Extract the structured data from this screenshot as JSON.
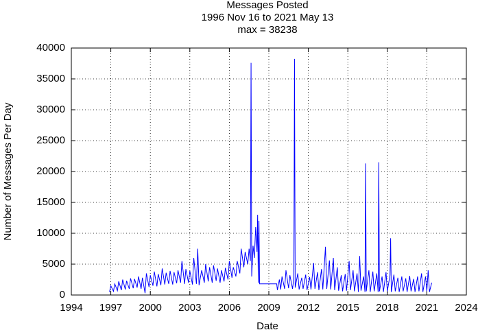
{
  "chart_data": {
    "type": "line",
    "title": "Messages Posted",
    "subtitle": "1996 Nov 16 to 2021 May 13",
    "annotation": "max = 38238",
    "x_label": "Date",
    "y_label": "Number of Messages Per Day",
    "xlim": [
      1994,
      2024
    ],
    "xticks": [
      1994,
      1997,
      2000,
      2003,
      2006,
      2009,
      2012,
      2015,
      2018,
      2021,
      2024
    ],
    "ylim": [
      0,
      40000
    ],
    "yticks": [
      0,
      5000,
      10000,
      15000,
      20000,
      25000,
      30000,
      35000,
      40000
    ],
    "grid": true,
    "x": [
      1996.9,
      1997.0,
      1997.2,
      1997.3,
      1997.5,
      1997.6,
      1997.8,
      1997.9,
      1998.1,
      1998.2,
      1998.4,
      1998.5,
      1998.7,
      1998.8,
      1999.0,
      1999.1,
      1999.3,
      1999.4,
      1999.6,
      1999.7,
      1999.9,
      2000.0,
      2000.2,
      2000.3,
      2000.5,
      2000.6,
      2000.8,
      2000.9,
      2001.1,
      2001.2,
      2001.4,
      2001.5,
      2001.7,
      2001.8,
      2002.0,
      2002.1,
      2002.3,
      2002.4,
      2002.6,
      2002.7,
      2002.9,
      2003.0,
      2003.2,
      2003.3,
      2003.5,
      2003.6,
      2003.7,
      2003.9,
      2004.1,
      2004.2,
      2004.4,
      2004.5,
      2004.7,
      2004.8,
      2005.0,
      2005.1,
      2005.3,
      2005.4,
      2005.6,
      2005.7,
      2005.9,
      2006.0,
      2006.2,
      2006.3,
      2006.5,
      2006.6,
      2006.8,
      2006.9,
      2007.1,
      2007.2,
      2007.4,
      2007.5,
      2007.6,
      2007.65,
      2007.7,
      2007.8,
      2007.9,
      2008.0,
      2008.1,
      2008.15,
      2008.2,
      2008.25,
      2008.3,
      2009.6,
      2009.65,
      2009.8,
      2009.9,
      2010.0,
      2010.2,
      2010.3,
      2010.5,
      2010.6,
      2010.8,
      2010.9,
      2010.95,
      2011.0,
      2011.2,
      2011.3,
      2011.5,
      2011.6,
      2011.8,
      2011.9,
      2012.1,
      2012.2,
      2012.4,
      2012.5,
      2012.7,
      2012.8,
      2013.0,
      2013.1,
      2013.3,
      2013.4,
      2013.6,
      2013.7,
      2013.9,
      2014.0,
      2014.2,
      2014.3,
      2014.5,
      2014.6,
      2014.8,
      2014.9,
      2015.1,
      2015.2,
      2015.4,
      2015.5,
      2015.7,
      2015.8,
      2015.9,
      2016.0,
      2016.2,
      2016.3,
      2016.35,
      2016.4,
      2016.6,
      2016.7,
      2016.9,
      2017.0,
      2017.2,
      2017.3,
      2017.35,
      2017.4,
      2017.6,
      2017.7,
      2017.9,
      2018.0,
      2018.2,
      2018.25,
      2018.3,
      2018.5,
      2018.6,
      2018.8,
      2018.9,
      2019.1,
      2019.2,
      2019.4,
      2019.5,
      2019.7,
      2019.8,
      2020.0,
      2020.1,
      2020.3,
      2020.4,
      2020.6,
      2020.7,
      2020.9,
      2021.0,
      2021.1,
      2021.2,
      2021.37
    ],
    "series": [
      {
        "color": "#0000ff",
        "values": [
          500,
          1500,
          600,
          1800,
          700,
          2200,
          800,
          2500,
          900,
          2300,
          1000,
          2700,
          1100,
          2600,
          1200,
          3000,
          1000,
          2800,
          300,
          3500,
          1300,
          3200,
          1500,
          3800,
          1400,
          3400,
          1600,
          4300,
          1700,
          3600,
          1800,
          3900,
          1700,
          3700,
          1900,
          4000,
          2000,
          5500,
          1800,
          4200,
          2000,
          3900,
          1700,
          6000,
          1800,
          7500,
          1600,
          4000,
          2000,
          5000,
          2200,
          4500,
          2000,
          4800,
          2300,
          4300,
          2000,
          4000,
          2200,
          4400,
          2500,
          5500,
          2800,
          4500,
          3000,
          5500,
          3500,
          7500,
          4500,
          7000,
          5000,
          7500,
          5500,
          37600,
          3000,
          8000,
          6000,
          11000,
          7000,
          13000,
          2000,
          12000,
          1800,
          1800,
          800,
          2500,
          900,
          3000,
          1000,
          4000,
          1100,
          3200,
          1000,
          2800,
          38238,
          1200,
          3500,
          900,
          2800,
          1000,
          3300,
          800,
          2900,
          900,
          5200,
          1000,
          3700,
          800,
          4200,
          900,
          7800,
          1000,
          5600,
          900,
          6000,
          800,
          4500,
          700,
          3200,
          600,
          3400,
          700,
          5500,
          800,
          4000,
          600,
          3500,
          500,
          6300,
          700,
          3000,
          500,
          21300,
          600,
          4000,
          500,
          3800,
          600,
          3500,
          500,
          21500,
          600,
          3000,
          500,
          3700,
          600,
          3200,
          9200,
          500,
          3300,
          600,
          2800,
          500,
          3000,
          600,
          2700,
          500,
          3100,
          600,
          2600,
          500,
          3000,
          600,
          3500,
          500,
          3000,
          600,
          4000,
          500,
          2000
        ]
      }
    ]
  }
}
